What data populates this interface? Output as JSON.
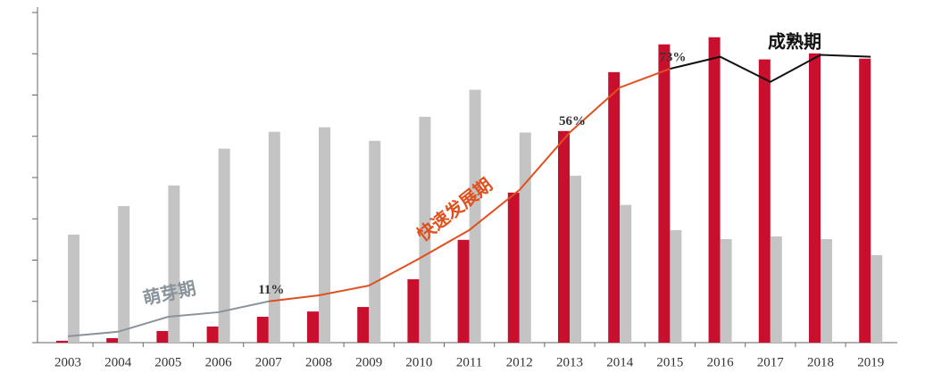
{
  "chart_data": {
    "type": "bar",
    "categories": [
      "2003",
      "2004",
      "2005",
      "2006",
      "2007",
      "2008",
      "2009",
      "2010",
      "2011",
      "2012",
      "2013",
      "2014",
      "2015",
      "2016",
      "2017",
      "2018",
      "2019"
    ],
    "ylim": [
      0,
      88
    ],
    "yticks": [
      0,
      11,
      22,
      33,
      44,
      55,
      66,
      77,
      88
    ],
    "series": [
      {
        "color": "#c8102e",
        "values": [
          0.5,
          1.2,
          3.1,
          4.3,
          6.9,
          8.3,
          9.5,
          16.9,
          27.4,
          40,
          56.4,
          72.1,
          79.5,
          81.4,
          75.5,
          77.1,
          75.7
        ]
      },
      {
        "color": "#c4c4c4",
        "values": [
          28.8,
          36.4,
          41.9,
          51.7,
          56.2,
          57.4,
          53.8,
          60.2,
          67.4,
          56,
          44.5,
          36.7,
          30,
          27.6,
          28.3,
          27.6,
          23.3
        ]
      },
      {
        "type": "line",
        "color": "#8a949c",
        "values": [
          1.7,
          2.9,
          6.9,
          8.1,
          11,
          null,
          null,
          null,
          null,
          null,
          null,
          null,
          null,
          null,
          null,
          null,
          null
        ]
      },
      {
        "type": "line",
        "color": "#e0501e",
        "values": [
          null,
          null,
          null,
          null,
          11,
          12.6,
          15.2,
          22.4,
          30,
          40.7,
          56,
          68,
          73,
          null,
          null,
          null,
          null
        ],
        "value_labels": [
          null,
          null,
          null,
          null,
          "11%",
          null,
          null,
          null,
          null,
          null,
          "56%",
          null,
          "73%",
          null,
          null,
          null,
          null
        ]
      },
      {
        "type": "line",
        "color": "#111111",
        "values": [
          null,
          null,
          null,
          null,
          null,
          null,
          null,
          null,
          null,
          null,
          null,
          null,
          73,
          76.2,
          69.5,
          76.7,
          76.2
        ]
      }
    ],
    "annotations": [
      {
        "text": "萌芽期",
        "color": "#8a949c"
      },
      {
        "text": "快速发展期",
        "color": "#e0501e"
      },
      {
        "text": "成熟期",
        "color": "#111111"
      }
    ]
  }
}
